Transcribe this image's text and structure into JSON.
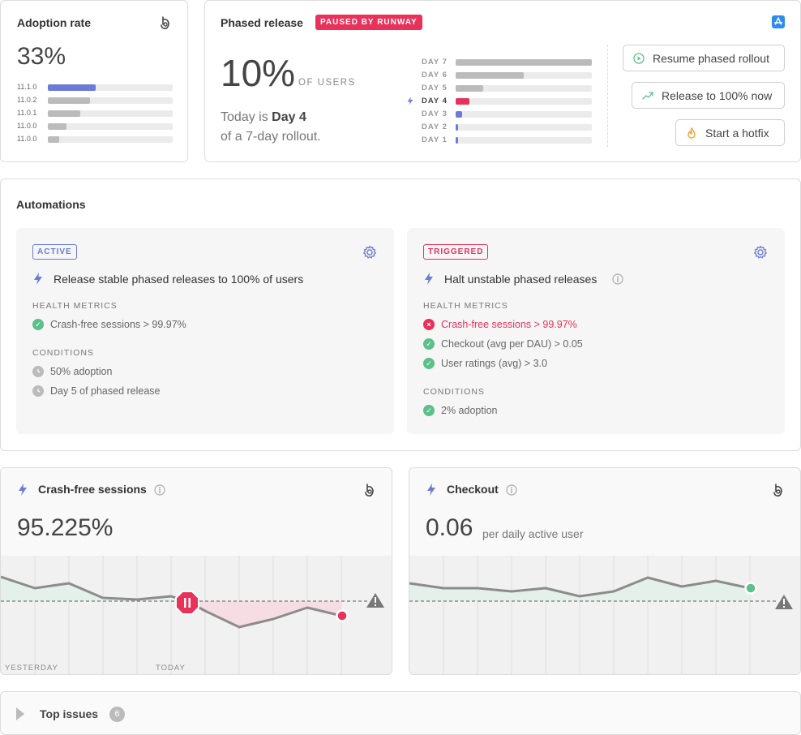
{
  "adoption": {
    "title": "Adoption rate",
    "value": "33%",
    "versions": [
      {
        "label": "11.1.0",
        "fraction": 0.38,
        "color": "#6b7bd6"
      },
      {
        "label": "11.0.2",
        "fraction": 0.34,
        "color": "#bbbbbb"
      },
      {
        "label": "11.0.1",
        "fraction": 0.26,
        "color": "#bbbbbb"
      },
      {
        "label": "11.0.0",
        "fraction": 0.15,
        "color": "#bbbbbb"
      },
      {
        "label": "11.0.0",
        "fraction": 0.09,
        "color": "#bbbbbb"
      }
    ]
  },
  "phased": {
    "title": "Phased release",
    "badge": "PAUSED BY RUNWAY",
    "percent": "10%",
    "percent_unit": "OF USERS",
    "today_prefix": "Today is ",
    "today_day": "Day 4",
    "rollout_text": "of a 7-day rollout.",
    "days": [
      {
        "label": "DAY 7",
        "fraction": 1.0,
        "color": "#bbbbbb",
        "current": false
      },
      {
        "label": "DAY 6",
        "fraction": 0.5,
        "color": "#bbbbbb",
        "current": false
      },
      {
        "label": "DAY 5",
        "fraction": 0.2,
        "color": "#bbbbbb",
        "current": false
      },
      {
        "label": "DAY 4",
        "fraction": 0.1,
        "color": "#e8325a",
        "current": true
      },
      {
        "label": "DAY 3",
        "fraction": 0.05,
        "color": "#6b7bd6",
        "current": false
      },
      {
        "label": "DAY 2",
        "fraction": 0.02,
        "color": "#6b7bd6",
        "current": false
      },
      {
        "label": "DAY 1",
        "fraction": 0.01,
        "color": "#6b7bd6",
        "current": false
      }
    ],
    "actions": {
      "resume": "Resume phased rollout",
      "release": "Release to 100% now",
      "hotfix": "Start a hotfix"
    }
  },
  "automations": {
    "title": "Automations",
    "left": {
      "tag": "ACTIVE",
      "title": "Release stable phased releases to 100% of users",
      "health_heading": "HEALTH METRICS",
      "health": [
        {
          "text": "Crash-free sessions > 99.97%",
          "status": "ok"
        }
      ],
      "conditions_heading": "CONDITIONS",
      "conditions": [
        {
          "text": "50% adoption",
          "status": "pending"
        },
        {
          "text": "Day 5 of phased release",
          "status": "pending"
        }
      ]
    },
    "right": {
      "tag": "TRIGGERED",
      "title": "Halt unstable phased releases",
      "health_heading": "HEALTH METRICS",
      "health": [
        {
          "text": "Crash-free sessions > 99.97%",
          "status": "fail"
        },
        {
          "text": "Checkout (avg per DAU) > 0.05",
          "status": "ok"
        },
        {
          "text": "User ratings (avg) > 3.0",
          "status": "ok"
        }
      ],
      "conditions_heading": "CONDITIONS",
      "conditions": [
        {
          "text": "2% adoption",
          "status": "ok"
        }
      ]
    }
  },
  "crash": {
    "title": "Crash-free sessions",
    "value": "95.225%",
    "label_yesterday": "YESTERDAY",
    "label_today": "TODAY"
  },
  "checkout": {
    "title": "Checkout",
    "value": "0.06",
    "unit": "per daily active user"
  },
  "issues": {
    "title": "Top issues",
    "count": "6"
  },
  "colors": {
    "accent": "#6b7bd6",
    "danger": "#e8325a",
    "ok": "#5cc08a",
    "pending": "#bbbbbb"
  }
}
